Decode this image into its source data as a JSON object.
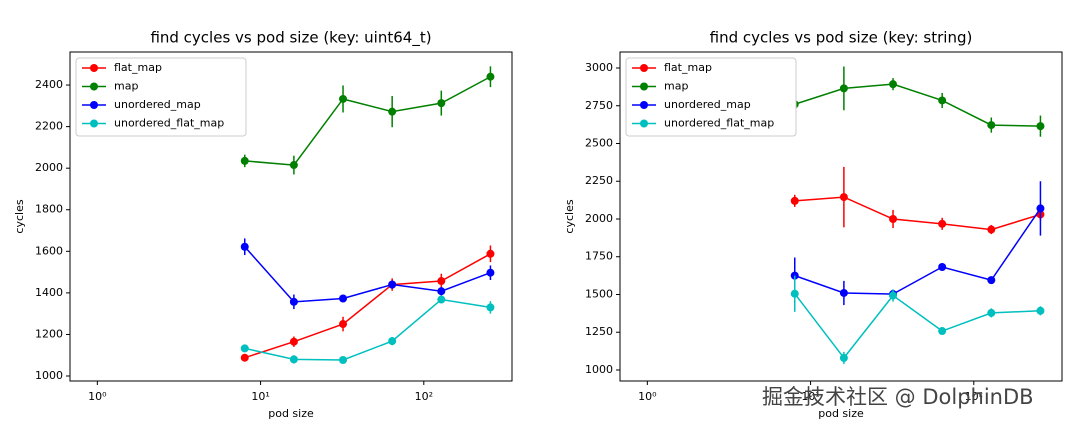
{
  "chart_data": [
    {
      "type": "line",
      "title": "find cycles vs pod size (key: uint64_t)",
      "x_label": "pod size",
      "y_label": "cycles",
      "x": [
        8,
        16,
        32,
        64,
        128,
        256
      ],
      "log_x": true,
      "legend": "upper left",
      "xlim": [
        0.68,
        347
      ],
      "ylim": [
        976,
        2559
      ],
      "xticks": [
        {
          "value": 1,
          "label": "10⁰"
        },
        {
          "value": 10,
          "label": "10¹"
        },
        {
          "value": 100,
          "label": "10²"
        }
      ],
      "yticks": [
        1000,
        1200,
        1400,
        1600,
        1800,
        2000,
        2200,
        2400
      ],
      "series": [
        {
          "name": "flat_map",
          "color": "#ff0000",
          "values": [
            1088,
            1165,
            1250,
            1440,
            1457,
            1588
          ],
          "errors": [
            15,
            25,
            35,
            30,
            35,
            40
          ]
        },
        {
          "name": "map",
          "color": "#008000",
          "values": [
            2035,
            2015,
            2333,
            2272,
            2313,
            2440
          ],
          "errors": [
            30,
            45,
            65,
            75,
            60,
            50
          ]
        },
        {
          "name": "unordered_map",
          "color": "#0000ff",
          "values": [
            1622,
            1357,
            1373,
            1440,
            1408,
            1497
          ],
          "errors": [
            40,
            35,
            15,
            20,
            20,
            35
          ]
        },
        {
          "name": "unordered_flat_map",
          "color": "#00bfbf",
          "values": [
            1133,
            1080,
            1077,
            1168,
            1368,
            1330
          ],
          "errors": [
            15,
            20,
            10,
            20,
            15,
            30
          ]
        }
      ]
    },
    {
      "type": "line",
      "title": "find cycles vs pod size (key: string)",
      "x_label": "pod size",
      "y_label": "cycles",
      "x": [
        8,
        16,
        32,
        64,
        128,
        256
      ],
      "log_x": true,
      "legend": "upper left",
      "xlim": [
        0.68,
        347
      ],
      "ylim": [
        927,
        3106
      ],
      "xticks": [
        {
          "value": 1,
          "label": "10⁰"
        },
        {
          "value": 10,
          "label": "10¹"
        },
        {
          "value": 100,
          "label": "10²"
        }
      ],
      "yticks": [
        1000,
        1250,
        1500,
        1750,
        2000,
        2250,
        2500,
        2750,
        3000
      ],
      "series": [
        {
          "name": "flat_map",
          "color": "#ff0000",
          "values": [
            2120,
            2145,
            2000,
            1968,
            1930,
            2030
          ],
          "errors": [
            40,
            200,
            60,
            40,
            30,
            40
          ]
        },
        {
          "name": "map",
          "color": "#008000",
          "values": [
            2760,
            2865,
            2893,
            2785,
            2622,
            2615
          ],
          "errors": [
            40,
            145,
            40,
            50,
            50,
            70
          ]
        },
        {
          "name": "unordered_map",
          "color": "#0000ff",
          "values": [
            1625,
            1510,
            1503,
            1682,
            1595,
            2070
          ],
          "errors": [
            120,
            80,
            30,
            20,
            15,
            180
          ]
        },
        {
          "name": "unordered_flat_map",
          "color": "#00bfbf",
          "values": [
            1505,
            1080,
            1493,
            1258,
            1378,
            1392
          ],
          "errors": [
            120,
            40,
            40,
            15,
            30,
            30
          ]
        }
      ]
    }
  ],
  "watermark": "掘金技术社区 @ DolphinDB"
}
